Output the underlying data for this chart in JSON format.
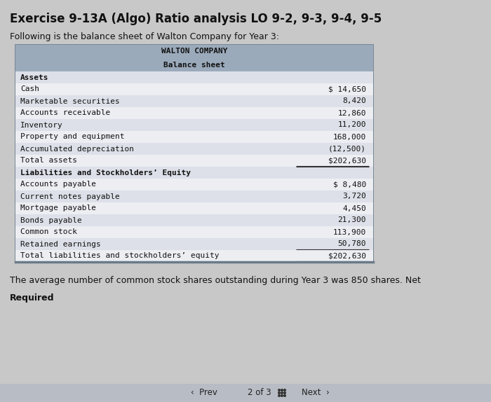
{
  "title": "Exercise 9-13A (Algo) Ratio analysis LO 9-2, 9-3, 9-4, 9-5",
  "subtitle": "Following is the balance sheet of Walton Company for Year 3:",
  "table_header1": "WALTON COMPANY",
  "table_header2": "Balance sheet",
  "header_bg": "#9baabb",
  "row_bg_odd": "#dde0e8",
  "row_bg_even": "#eceef2",
  "page_bg": "#c8c8c8",
  "table_border": "#6a7a8a",
  "assets_rows": [
    [
      "Assets",
      "",
      "bold",
      false,
      false
    ],
    [
      "Cash",
      "$ 14,650",
      "normal",
      false,
      false
    ],
    [
      "Marketable securities",
      "8,420",
      "normal",
      false,
      false
    ],
    [
      "Accounts receivable",
      "12,860",
      "normal",
      false,
      false
    ],
    [
      "Inventory",
      "11,200",
      "normal",
      false,
      false
    ],
    [
      "Property and equipment",
      "168,000",
      "normal",
      false,
      false
    ],
    [
      "Accumulated depreciation",
      "(12,500)",
      "normal",
      false,
      false
    ],
    [
      "Total assets",
      "$202,630",
      "normal",
      true,
      true
    ]
  ],
  "liabilities_rows": [
    [
      "Liabilities and Stockholders’ Equity",
      "",
      "bold",
      false,
      false
    ],
    [
      "Accounts payable",
      "$ 8,480",
      "normal",
      false,
      false
    ],
    [
      "Current notes payable",
      "3,720",
      "normal",
      false,
      false
    ],
    [
      "Mortgage payable",
      "4,450",
      "normal",
      false,
      false
    ],
    [
      "Bonds payable",
      "21,300",
      "normal",
      false,
      false
    ],
    [
      "Common stock",
      "113,900",
      "normal",
      false,
      false
    ],
    [
      "Retained earnings",
      "50,780",
      "normal",
      true,
      false
    ],
    [
      "Total liabilities and stockholders’ equity",
      "$202,630",
      "normal",
      true,
      true
    ]
  ],
  "footer_text": "The average number of common stock shares outstanding during Year 3 was 850 shares. Net",
  "required_label": "Required",
  "nav_prev": "‹  Prev",
  "nav_page": "2 of 3",
  "nav_next": "Next  ›"
}
